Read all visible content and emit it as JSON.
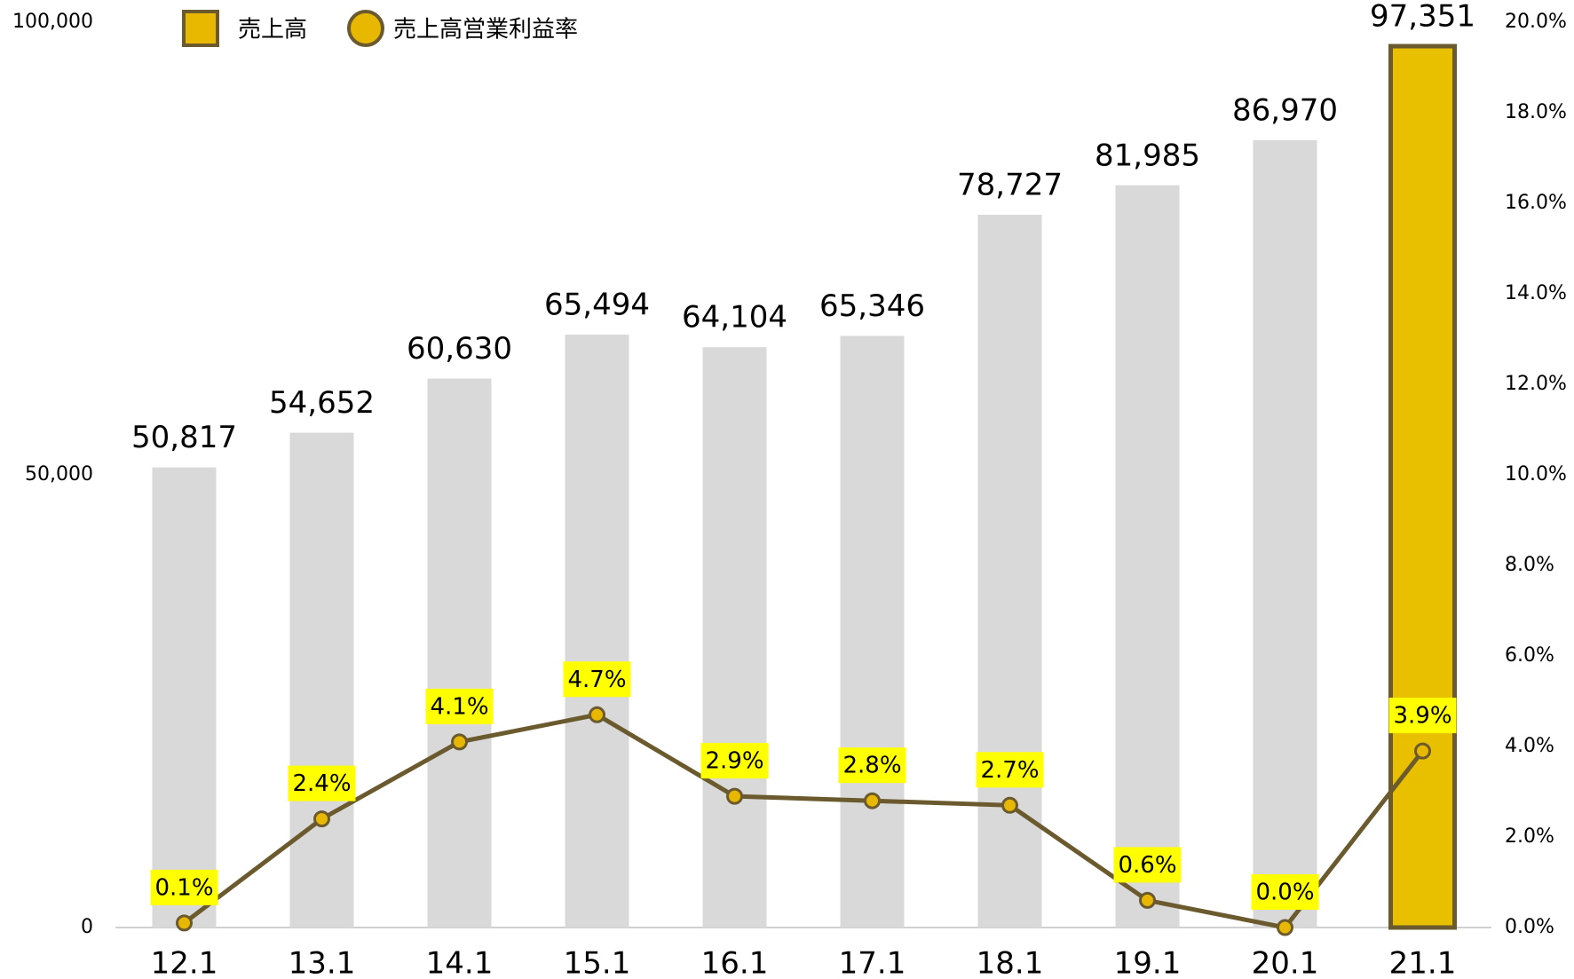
{
  "chart_data": {
    "type": "bar_line",
    "categories": [
      "12.1",
      "13.1",
      "14.1",
      "15.1",
      "16.1",
      "17.1",
      "18.1",
      "19.1",
      "20.1",
      "21.1"
    ],
    "series": [
      {
        "name": "売上高",
        "type": "bar",
        "color": "#d9d9d9",
        "colors": [
          "#d9d9d9",
          "#d9d9d9",
          "#d9d9d9",
          "#d9d9d9",
          "#d9d9d9",
          "#d9d9d9",
          "#d9d9d9",
          "#d9d9d9",
          "#d9d9d9",
          "#e8c000"
        ],
        "values": [
          50817,
          54652,
          60630,
          65494,
          64104,
          65346,
          78727,
          81985,
          86970,
          97351
        ],
        "value_labels": [
          "50,817",
          "54,652",
          "60,630",
          "65,494",
          "64,104",
          "65,346",
          "78,727",
          "81,985",
          "86,970",
          "97,351"
        ]
      },
      {
        "name": "売上高営業利益率",
        "type": "line",
        "axis": "y2",
        "color": "#6b5a2e",
        "marker_color": "#e8b800",
        "values": [
          0.1,
          2.4,
          4.1,
          4.7,
          2.9,
          2.8,
          2.7,
          0.6,
          0.0,
          3.9
        ],
        "value_labels": [
          "0.1%",
          "2.4%",
          "4.1%",
          "4.7%",
          "2.9%",
          "2.8%",
          "2.7%",
          "0.6%",
          "0.0%",
          "3.9%"
        ]
      }
    ],
    "ylim": [
      0,
      100000
    ],
    "yticks": [
      0,
      {
        "value": 50000,
        "label": "50,000"
      },
      {
        "value": 100000,
        "label": "100,000"
      }
    ],
    "y2lim": [
      0,
      20
    ],
    "y2ticks": [
      {
        "value": 0,
        "label": "0.0%"
      },
      {
        "value": 2,
        "label": "2.0%"
      },
      {
        "value": 4,
        "label": "4.0%"
      },
      {
        "value": 6,
        "label": "6.0%"
      },
      {
        "value": 8,
        "label": "8.0%"
      },
      {
        "value": 10,
        "label": "10.0%"
      },
      {
        "value": 12,
        "label": "12.0%"
      },
      {
        "value": 14,
        "label": "14.0%"
      },
      {
        "value": 16,
        "label": "16.0%"
      },
      {
        "value": 18,
        "label": "18.0%"
      },
      {
        "value": 20,
        "label": "20.0%"
      }
    ],
    "legend": "top-left"
  }
}
